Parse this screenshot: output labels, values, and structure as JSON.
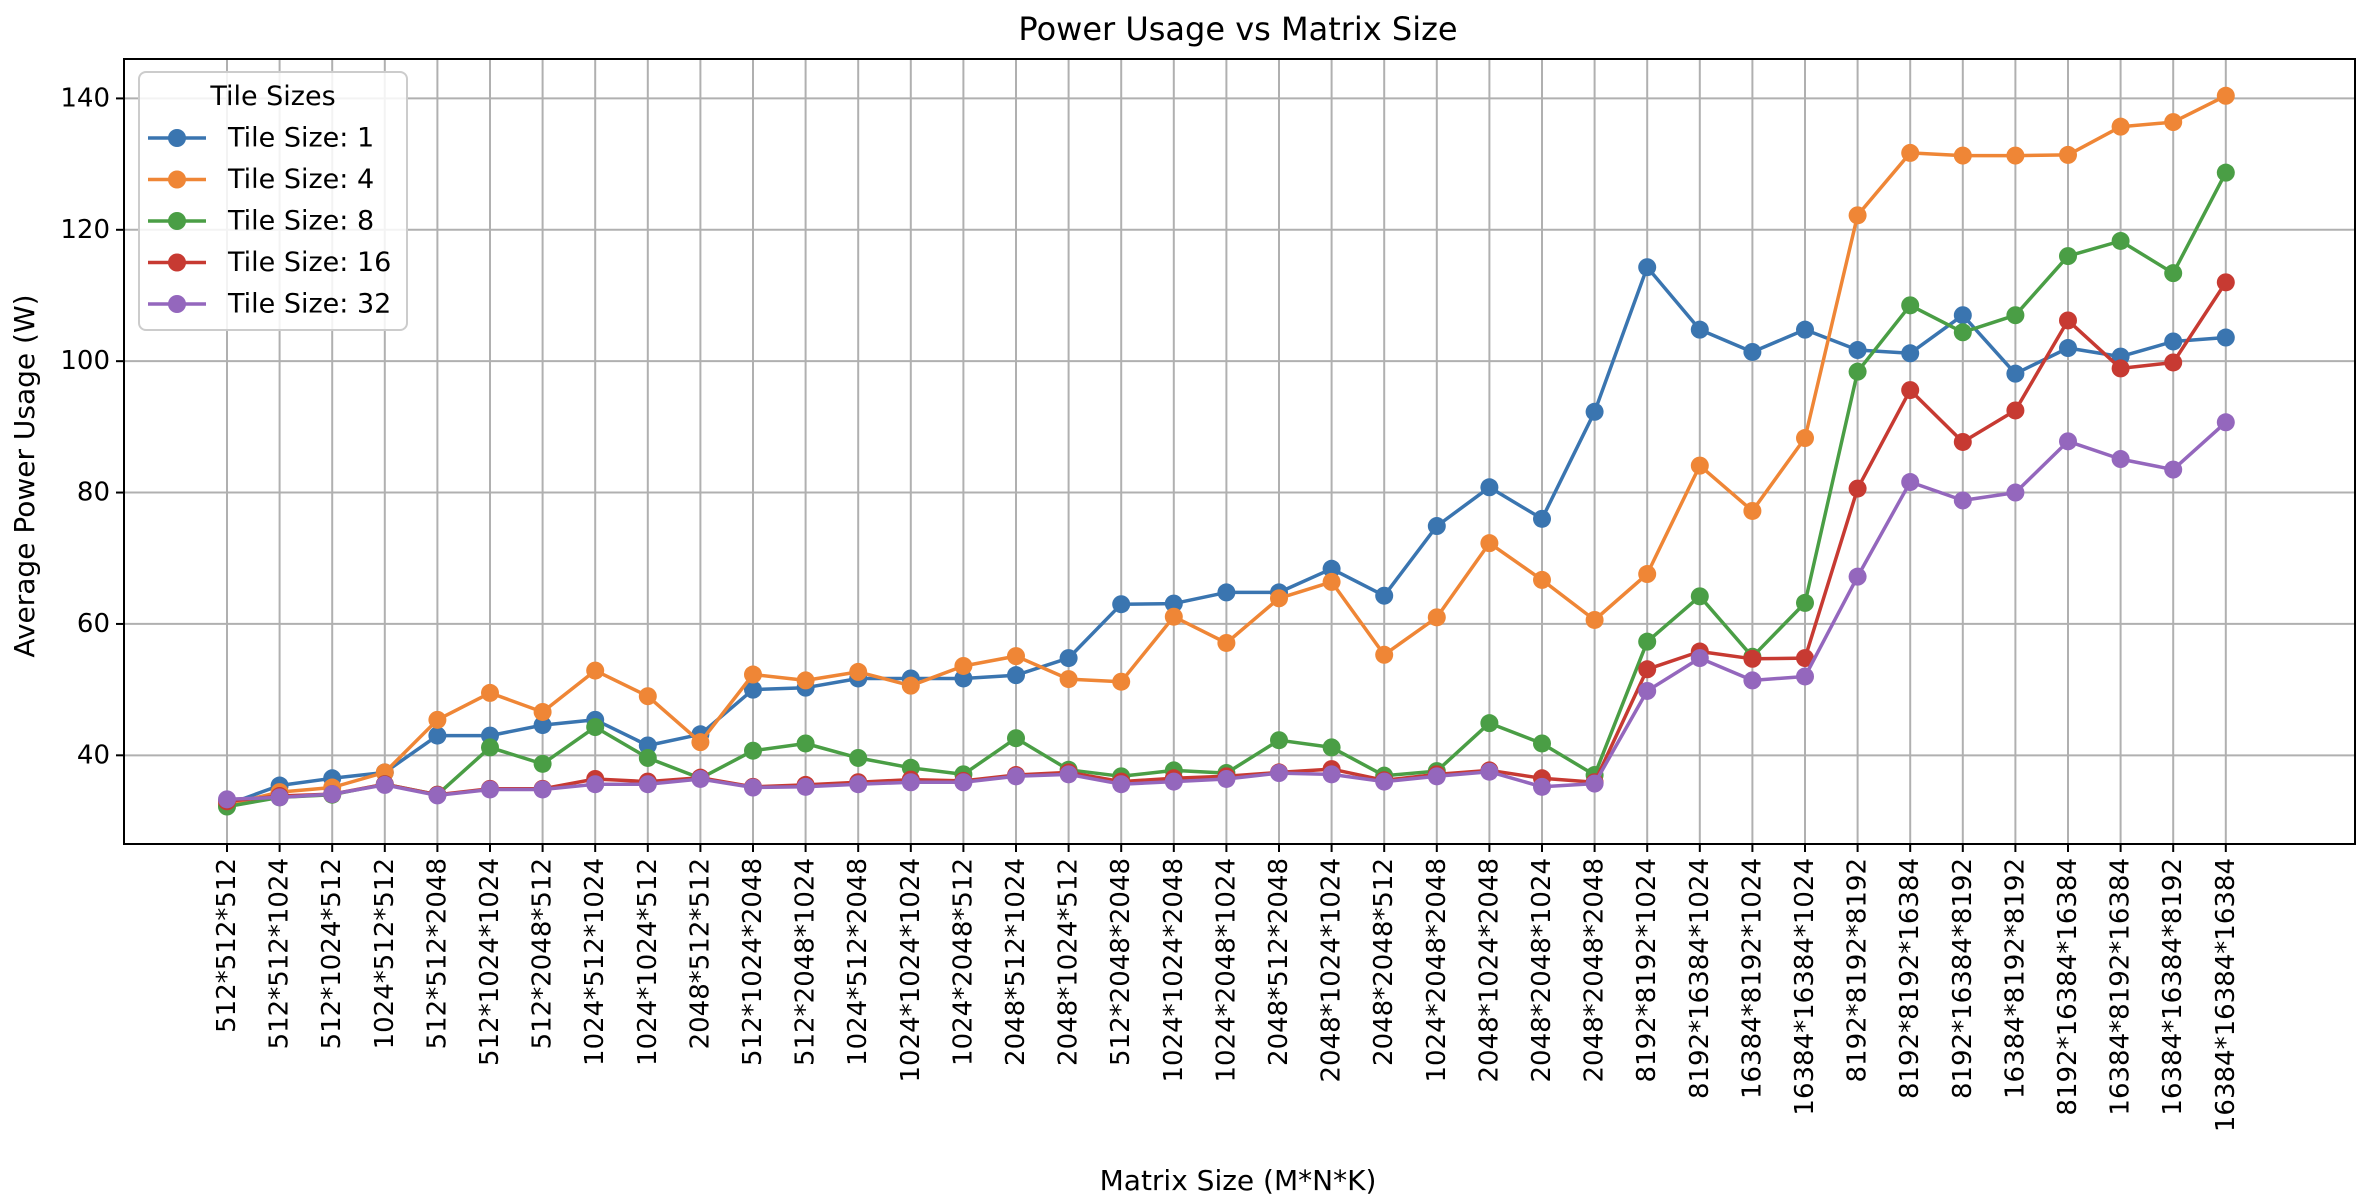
{
  "chart_data": {
    "type": "line",
    "title": "Power Usage vs Matrix Size",
    "xlabel": "Matrix Size (M*N*K)",
    "ylabel": "Average Power Usage (W)",
    "ylim": [
      26.5,
      146
    ],
    "yticks": [
      40,
      60,
      80,
      100,
      120,
      140
    ],
    "grid": true,
    "legend": {
      "title": "Tile Sizes",
      "placement": "top-left"
    },
    "categories": [
      "512*512*512",
      "512*512*1024",
      "512*1024*512",
      "1024*512*512",
      "512*512*2048",
      "512*1024*1024",
      "512*2048*512",
      "1024*512*1024",
      "1024*1024*512",
      "2048*512*512",
      "512*1024*2048",
      "512*2048*1024",
      "1024*512*2048",
      "1024*1024*1024",
      "1024*2048*512",
      "2048*512*1024",
      "2048*1024*512",
      "512*2048*2048",
      "1024*1024*2048",
      "1024*2048*1024",
      "2048*512*2048",
      "2048*1024*1024",
      "2048*2048*512",
      "1024*2048*2048",
      "2048*1024*2048",
      "2048*2048*1024",
      "2048*2048*2048",
      "8192*8192*1024",
      "8192*16384*1024",
      "16384*8192*1024",
      "16384*16384*1024",
      "8192*8192*8192",
      "8192*8192*16384",
      "8192*16384*8192",
      "16384*8192*8192",
      "8192*16384*16384",
      "16384*8192*16384",
      "16384*16384*8192",
      "16384*16384*16384"
    ],
    "series": [
      {
        "name": "Tile Size: 1",
        "color": "#3a75b0",
        "values": [
          32.5,
          35.4,
          36.5,
          37.4,
          43.0,
          43.0,
          44.6,
          45.4,
          41.5,
          43.2,
          50.0,
          50.3,
          51.7,
          51.7,
          51.7,
          52.2,
          54.8,
          63.0,
          63.1,
          64.8,
          64.8,
          68.4,
          64.3,
          74.9,
          80.8,
          76.0,
          92.3,
          114.3,
          104.8,
          101.4,
          104.8,
          101.7,
          101.2,
          107.0,
          98.1,
          102.0,
          100.7,
          103.0,
          103.6
        ]
      },
      {
        "name": "Tile Size: 4",
        "color": "#ef8636",
        "values": [
          32.5,
          34.4,
          35.1,
          37.4,
          45.4,
          49.5,
          46.6,
          52.9,
          49.0,
          42.0,
          52.3,
          51.4,
          52.7,
          50.6,
          53.6,
          55.1,
          51.6,
          51.2,
          61.1,
          57.1,
          63.9,
          66.4,
          55.3,
          61.0,
          72.3,
          66.7,
          60.6,
          67.6,
          84.1,
          77.2,
          88.3,
          122.2,
          131.7,
          131.3,
          131.3,
          131.4,
          135.7,
          136.4,
          140.4
        ]
      },
      {
        "name": "Tile Size: 8",
        "color": "#4a9e45",
        "values": [
          32.2,
          33.6,
          34.0,
          35.6,
          34.0,
          41.2,
          38.7,
          44.3,
          39.6,
          36.5,
          40.7,
          41.8,
          39.6,
          38.1,
          37.1,
          42.6,
          37.8,
          36.8,
          37.7,
          37.3,
          42.3,
          41.2,
          36.9,
          37.6,
          44.9,
          41.8,
          37.0,
          57.3,
          64.2,
          55.0,
          63.2,
          98.4,
          108.5,
          104.4,
          107.0,
          116.0,
          118.3,
          113.4,
          128.7
        ]
      },
      {
        "name": "Tile Size: 16",
        "color": "#c73a32",
        "values": [
          33.0,
          33.8,
          34.1,
          35.6,
          34.0,
          34.9,
          34.9,
          36.4,
          36.0,
          36.6,
          35.2,
          35.5,
          35.9,
          36.3,
          36.1,
          37.0,
          37.4,
          36.0,
          36.5,
          36.8,
          37.4,
          37.9,
          36.2,
          37.1,
          37.7,
          36.5,
          35.9,
          53.1,
          55.8,
          54.7,
          54.8,
          80.6,
          95.6,
          87.7,
          92.5,
          106.2,
          98.9,
          99.8,
          112.0
        ]
      },
      {
        "name": "Tile Size: 32",
        "color": "#9467bd",
        "values": [
          33.3,
          33.6,
          34.1,
          35.5,
          33.9,
          34.8,
          34.8,
          35.6,
          35.6,
          36.4,
          35.1,
          35.2,
          35.6,
          35.9,
          35.9,
          36.8,
          37.1,
          35.6,
          36.0,
          36.4,
          37.3,
          37.1,
          36.0,
          36.8,
          37.5,
          35.2,
          35.7,
          49.8,
          54.8,
          51.4,
          52.0,
          67.2,
          81.6,
          78.8,
          80.0,
          87.8,
          85.1,
          83.5,
          90.7
        ]
      }
    ]
  }
}
